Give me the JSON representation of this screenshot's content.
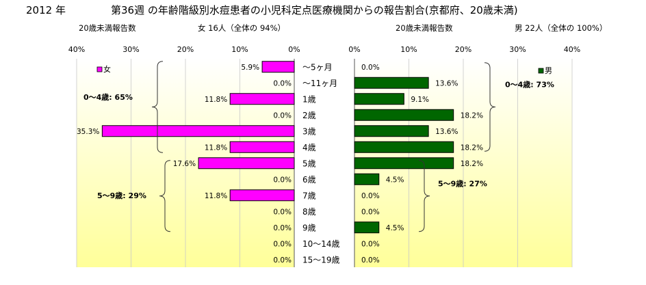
{
  "header": {
    "year": "2012 年",
    "title": "第36週 の年齢階級別水痘患者の小児科定点医療機関からの報告割合(京都府、20歳未満)"
  },
  "left_panel": {
    "subtitle_label": "20歳未満報告数",
    "subtitle_summary": "女 16人（全体の 94%）",
    "legend": "女",
    "group_labels": [
      "0～4歳: 65%",
      "5～9歳: 29%"
    ]
  },
  "right_panel": {
    "subtitle_label": "20歳未満報告数",
    "subtitle_summary": "男 22人（全体の 100%）",
    "legend": "男",
    "group_labels": [
      "0～4歳: 73%",
      "5～9歳: 27%"
    ]
  },
  "colors": {
    "female": "#ff00ff",
    "male": "#006600",
    "plot_top": "#ffffff",
    "plot_bottom": "#ffff99"
  },
  "chart_data": [
    {
      "type": "bar",
      "orientation": "horizontal",
      "direction": "right-to-left",
      "categories": [
        "～5ヶ月",
        "～11ヶ月",
        "1歳",
        "2歳",
        "3歳",
        "4歳",
        "5歳",
        "6歳",
        "7歳",
        "8歳",
        "9歳",
        "10～14歳",
        "15～19歳"
      ],
      "series": [
        {
          "name": "女",
          "values": [
            5.9,
            0.0,
            11.8,
            0.0,
            35.3,
            11.8,
            17.6,
            0.0,
            11.8,
            0.0,
            0.0,
            0.0,
            0.0
          ],
          "labels": [
            "5.9%",
            "0.0%",
            "11.8%",
            "0.0%",
            "35.3%",
            "11.8%",
            "17.6%",
            "0.0%",
            "11.8%",
            "0.0%",
            "0.0%",
            "0.0%",
            "0.0%"
          ]
        }
      ],
      "xlim": [
        0,
        40
      ],
      "ticks": [
        "40%",
        "30%",
        "20%",
        "10%",
        "0%"
      ],
      "legend": "top-left"
    },
    {
      "type": "bar",
      "orientation": "horizontal",
      "categories": [
        "～5ヶ月",
        "～11ヶ月",
        "1歳",
        "2歳",
        "3歳",
        "4歳",
        "5歳",
        "6歳",
        "7歳",
        "8歳",
        "9歳",
        "10～14歳",
        "15～19歳"
      ],
      "series": [
        {
          "name": "男",
          "values": [
            0.0,
            13.6,
            9.1,
            18.2,
            13.6,
            18.2,
            18.2,
            4.5,
            0.0,
            0.0,
            4.5,
            0.0,
            0.0
          ],
          "labels": [
            "0.0%",
            "13.6%",
            "9.1%",
            "18.2%",
            "13.6%",
            "18.2%",
            "18.2%",
            "4.5%",
            "0.0%",
            "0.0%",
            "4.5%",
            "0.0%",
            "0.0%"
          ]
        }
      ],
      "xlim": [
        0,
        40
      ],
      "ticks": [
        "0%",
        "10%",
        "20%",
        "30%",
        "40%"
      ],
      "legend": "top-right"
    }
  ]
}
